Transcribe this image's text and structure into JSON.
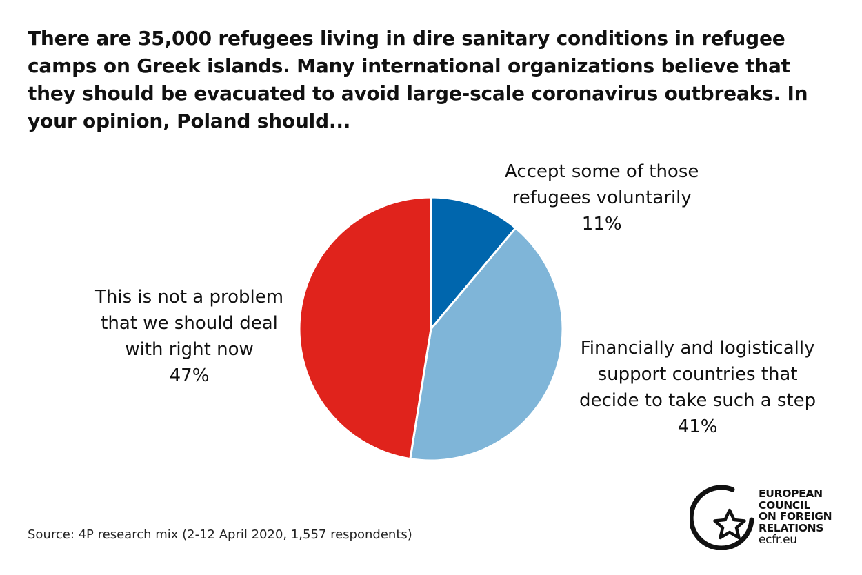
{
  "title": "There are 35,000 refugees living in dire sanitary conditions in refugee camps on Greek islands. Many international organizations believe that they should be evacuated to avoid large-scale coronavirus outbreaks. In your opinion, Poland should...",
  "source": "Source: 4P research mix (2-12 April 2020, 1,557 respondents)",
  "logo": {
    "lines": [
      "EUROPEAN",
      "COUNCIL",
      "ON FOREIGN",
      "RELATIONS"
    ],
    "url": "ecfr.eu"
  },
  "chart_data": {
    "type": "pie",
    "start_angle_deg": 0,
    "direction": "clockwise",
    "slices": [
      {
        "label_lines": [
          "Accept some of those",
          "refugees voluntarily"
        ],
        "value": 11,
        "value_label": "11%",
        "color": "#0066ad"
      },
      {
        "label_lines": [
          "Financially and logistically",
          "support countries that",
          "decide to take such a step"
        ],
        "value": 41,
        "value_label": "41%",
        "color": "#7fb5d8"
      },
      {
        "label_lines": [
          "This is not a problem",
          "that we should deal",
          "with right now"
        ],
        "value": 47,
        "value_label": "47%",
        "color": "#e0231c"
      }
    ]
  }
}
